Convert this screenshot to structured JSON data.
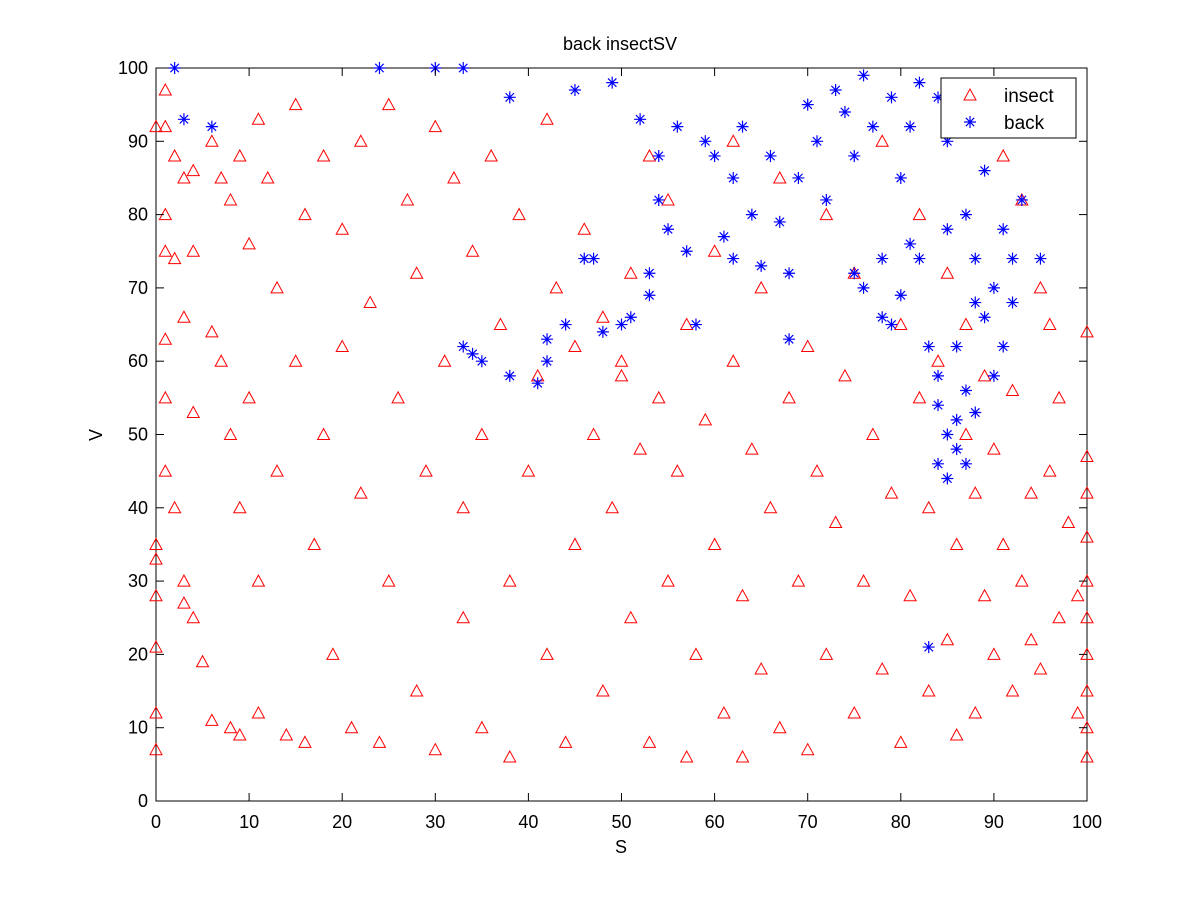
{
  "chart_data": {
    "type": "scatter",
    "title": "back insectSV",
    "xlabel": "S",
    "ylabel": "V",
    "xlim": [
      0,
      100
    ],
    "ylim": [
      0,
      100
    ],
    "xticks": [
      0,
      10,
      20,
      30,
      40,
      50,
      60,
      70,
      80,
      90,
      100
    ],
    "yticks": [
      0,
      10,
      20,
      30,
      40,
      50,
      60,
      70,
      80,
      90,
      100
    ],
    "grid": false,
    "legend_position": "top-right",
    "series": [
      {
        "name": "insect",
        "marker": "triangle",
        "color": "#ff0000",
        "points": [
          [
            0,
            92
          ],
          [
            0,
            35
          ],
          [
            0,
            33
          ],
          [
            0,
            28
          ],
          [
            0,
            21
          ],
          [
            0,
            12
          ],
          [
            0,
            7
          ],
          [
            1,
            97
          ],
          [
            1,
            92
          ],
          [
            1,
            80
          ],
          [
            1,
            75
          ],
          [
            1,
            63
          ],
          [
            1,
            55
          ],
          [
            1,
            45
          ],
          [
            2,
            88
          ],
          [
            2,
            74
          ],
          [
            2,
            40
          ],
          [
            3,
            85
          ],
          [
            3,
            66
          ],
          [
            3,
            30
          ],
          [
            3,
            27
          ],
          [
            4,
            86
          ],
          [
            4,
            75
          ],
          [
            4,
            53
          ],
          [
            4,
            25
          ],
          [
            5,
            19
          ],
          [
            6,
            90
          ],
          [
            6,
            64
          ],
          [
            6,
            11
          ],
          [
            7,
            85
          ],
          [
            7,
            60
          ],
          [
            8,
            82
          ],
          [
            8,
            50
          ],
          [
            8,
            10
          ],
          [
            9,
            88
          ],
          [
            9,
            40
          ],
          [
            9,
            9
          ],
          [
            10,
            76
          ],
          [
            10,
            55
          ],
          [
            11,
            93
          ],
          [
            11,
            30
          ],
          [
            11,
            12
          ],
          [
            12,
            85
          ],
          [
            13,
            70
          ],
          [
            13,
            45
          ],
          [
            14,
            9
          ],
          [
            15,
            95
          ],
          [
            15,
            60
          ],
          [
            16,
            80
          ],
          [
            16,
            8
          ],
          [
            17,
            35
          ],
          [
            18,
            88
          ],
          [
            18,
            50
          ],
          [
            19,
            20
          ],
          [
            20,
            78
          ],
          [
            20,
            62
          ],
          [
            21,
            10
          ],
          [
            22,
            90
          ],
          [
            22,
            42
          ],
          [
            23,
            68
          ],
          [
            24,
            8
          ],
          [
            25,
            95
          ],
          [
            25,
            30
          ],
          [
            26,
            55
          ],
          [
            27,
            82
          ],
          [
            28,
            15
          ],
          [
            28,
            72
          ],
          [
            29,
            45
          ],
          [
            30,
            92
          ],
          [
            30,
            7
          ],
          [
            31,
            60
          ],
          [
            32,
            85
          ],
          [
            33,
            25
          ],
          [
            33,
            40
          ],
          [
            34,
            75
          ],
          [
            35,
            10
          ],
          [
            35,
            50
          ],
          [
            36,
            88
          ],
          [
            37,
            65
          ],
          [
            38,
            30
          ],
          [
            38,
            6
          ],
          [
            39,
            80
          ],
          [
            40,
            45
          ],
          [
            41,
            58
          ],
          [
            42,
            20
          ],
          [
            42,
            93
          ],
          [
            43,
            70
          ],
          [
            44,
            8
          ],
          [
            45,
            62
          ],
          [
            45,
            35
          ],
          [
            46,
            78
          ],
          [
            47,
            50
          ],
          [
            48,
            15
          ],
          [
            48,
            66
          ],
          [
            49,
            40
          ],
          [
            50,
            58
          ],
          [
            50,
            60
          ],
          [
            51,
            25
          ],
          [
            51,
            72
          ],
          [
            52,
            48
          ],
          [
            53,
            88
          ],
          [
            53,
            8
          ],
          [
            54,
            55
          ],
          [
            55,
            30
          ],
          [
            55,
            82
          ],
          [
            56,
            45
          ],
          [
            57,
            65
          ],
          [
            57,
            6
          ],
          [
            58,
            20
          ],
          [
            59,
            52
          ],
          [
            60,
            75
          ],
          [
            60,
            35
          ],
          [
            61,
            12
          ],
          [
            62,
            60
          ],
          [
            62,
            90
          ],
          [
            63,
            28
          ],
          [
            63,
            6
          ],
          [
            64,
            48
          ],
          [
            65,
            70
          ],
          [
            65,
            18
          ],
          [
            66,
            40
          ],
          [
            67,
            85
          ],
          [
            67,
            10
          ],
          [
            68,
            55
          ],
          [
            69,
            30
          ],
          [
            70,
            62
          ],
          [
            70,
            7
          ],
          [
            71,
            45
          ],
          [
            72,
            80
          ],
          [
            72,
            20
          ],
          [
            73,
            38
          ],
          [
            74,
            58
          ],
          [
            75,
            12
          ],
          [
            75,
            72
          ],
          [
            76,
            30
          ],
          [
            77,
            50
          ],
          [
            78,
            90
          ],
          [
            78,
            18
          ],
          [
            79,
            42
          ],
          [
            80,
            65
          ],
          [
            80,
            8
          ],
          [
            81,
            28
          ],
          [
            82,
            55
          ],
          [
            82,
            80
          ],
          [
            83,
            15
          ],
          [
            83,
            40
          ],
          [
            84,
            60
          ],
          [
            85,
            22
          ],
          [
            85,
            72
          ],
          [
            86,
            35
          ],
          [
            86,
            9
          ],
          [
            87,
            50
          ],
          [
            87,
            65
          ],
          [
            88,
            12
          ],
          [
            88,
            42
          ],
          [
            89,
            28
          ],
          [
            89,
            58
          ],
          [
            90,
            20
          ],
          [
            90,
            48
          ],
          [
            91,
            35
          ],
          [
            91,
            88
          ],
          [
            92,
            15
          ],
          [
            92,
            56
          ],
          [
            93,
            30
          ],
          [
            93,
            82
          ],
          [
            94,
            42
          ],
          [
            94,
            22
          ],
          [
            95,
            70
          ],
          [
            95,
            18
          ],
          [
            96,
            65
          ],
          [
            96,
            45
          ],
          [
            97,
            55
          ],
          [
            97,
            25
          ],
          [
            98,
            38
          ],
          [
            99,
            28
          ],
          [
            99,
            12
          ],
          [
            100,
            64
          ],
          [
            100,
            47
          ],
          [
            100,
            42
          ],
          [
            100,
            36
          ],
          [
            100,
            30
          ],
          [
            100,
            25
          ],
          [
            100,
            20
          ],
          [
            100,
            15
          ],
          [
            100,
            10
          ],
          [
            100,
            6
          ]
        ]
      },
      {
        "name": "back",
        "marker": "asterisk",
        "color": "#0000ff",
        "points": [
          [
            2,
            100
          ],
          [
            3,
            93
          ],
          [
            6,
            92
          ],
          [
            24,
            100
          ],
          [
            30,
            100
          ],
          [
            33,
            100
          ],
          [
            33,
            62
          ],
          [
            34,
            61
          ],
          [
            35,
            60
          ],
          [
            38,
            96
          ],
          [
            38,
            58
          ],
          [
            41,
            57
          ],
          [
            42,
            63
          ],
          [
            42,
            60
          ],
          [
            44,
            65
          ],
          [
            45,
            97
          ],
          [
            46,
            74
          ],
          [
            47,
            74
          ],
          [
            48,
            64
          ],
          [
            49,
            98
          ],
          [
            50,
            65
          ],
          [
            51,
            66
          ],
          [
            52,
            93
          ],
          [
            53,
            69
          ],
          [
            53,
            72
          ],
          [
            54,
            82
          ],
          [
            54,
            88
          ],
          [
            55,
            78
          ],
          [
            56,
            92
          ],
          [
            57,
            75
          ],
          [
            58,
            65
          ],
          [
            59,
            90
          ],
          [
            60,
            88
          ],
          [
            61,
            77
          ],
          [
            62,
            85
          ],
          [
            62,
            74
          ],
          [
            63,
            92
          ],
          [
            64,
            80
          ],
          [
            65,
            73
          ],
          [
            66,
            88
          ],
          [
            67,
            79
          ],
          [
            68,
            72
          ],
          [
            68,
            63
          ],
          [
            69,
            85
          ],
          [
            70,
            95
          ],
          [
            71,
            90
          ],
          [
            72,
            82
          ],
          [
            73,
            97
          ],
          [
            74,
            94
          ],
          [
            75,
            72
          ],
          [
            75,
            88
          ],
          [
            76,
            99
          ],
          [
            76,
            70
          ],
          [
            77,
            92
          ],
          [
            78,
            74
          ],
          [
            78,
            66
          ],
          [
            79,
            96
          ],
          [
            79,
            65
          ],
          [
            80,
            85
          ],
          [
            80,
            69
          ],
          [
            81,
            76
          ],
          [
            81,
            92
          ],
          [
            82,
            74
          ],
          [
            82,
            98
          ],
          [
            83,
            62
          ],
          [
            83,
            21
          ],
          [
            84,
            58
          ],
          [
            84,
            54
          ],
          [
            84,
            46
          ],
          [
            84,
            96
          ],
          [
            85,
            50
          ],
          [
            85,
            44
          ],
          [
            85,
            90
          ],
          [
            85,
            78
          ],
          [
            86,
            52
          ],
          [
            86,
            48
          ],
          [
            86,
            62
          ],
          [
            87,
            56
          ],
          [
            87,
            46
          ],
          [
            87,
            80
          ],
          [
            88,
            68
          ],
          [
            88,
            53
          ],
          [
            88,
            74
          ],
          [
            89,
            66
          ],
          [
            89,
            86
          ],
          [
            90,
            70
          ],
          [
            90,
            58
          ],
          [
            90,
            94
          ],
          [
            91,
            78
          ],
          [
            91,
            62
          ],
          [
            92,
            74
          ],
          [
            92,
            68
          ],
          [
            93,
            82
          ],
          [
            95,
            74
          ]
        ]
      }
    ]
  }
}
